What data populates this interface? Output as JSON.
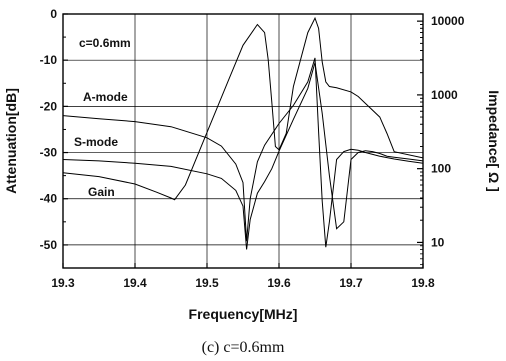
{
  "chart_data": {
    "type": "line",
    "title": "",
    "caption": "(c) c=0.6mm",
    "xlabel": "Frequency[MHz]",
    "ylabel_left": "Attenuation[dB]",
    "ylabel_right": "Impedance[ Ω ]",
    "xlim": [
      19.3,
      19.8
    ],
    "ylim_left": [
      -55,
      0
    ],
    "ylim_right_log": [
      4.5,
      12500
    ],
    "x_ticks": [
      "19.3",
      "19.4",
      "19.5",
      "19.6",
      "19.7",
      "19.8"
    ],
    "y_ticks_left": [
      "0",
      "-10",
      "-20",
      "-30",
      "-40",
      "-50"
    ],
    "y_ticks_right": [
      "10",
      "100",
      "1000",
      "10000"
    ],
    "grid": true,
    "annotations": {
      "param": "c=0.6mm",
      "a_mode": "A-mode",
      "s_mode": "S-mode",
      "gain": "Gain"
    },
    "series": [
      {
        "axis": "left",
        "x": [
          19.3,
          19.35,
          19.4,
          19.45,
          19.5,
          19.52,
          19.54,
          19.55,
          19.555,
          19.56,
          19.57,
          19.58,
          19.6,
          19.62,
          19.64,
          19.65,
          19.655,
          19.66,
          19.665,
          19.67,
          19.68,
          19.69,
          19.7,
          19.71,
          19.72,
          19.74,
          19.75,
          19.76,
          19.78,
          19.8
        ],
        "y": [
          -22,
          -22.7,
          -23.3,
          -24.4,
          -26.8,
          -28.6,
          -32.5,
          -36.5,
          -49.2,
          -40,
          -32,
          -28.4,
          -23.7,
          -19.8,
          -14.7,
          -9.5,
          -25.5,
          -40.5,
          -50.5,
          -45,
          -31.5,
          -29.8,
          -29.3,
          -29.5,
          -30,
          -30.8,
          -31.1,
          -31.4,
          -31.9,
          -32.3
        ]
      },
      {
        "axis": "left",
        "x": [
          19.3,
          19.35,
          19.4,
          19.45,
          19.5,
          19.52,
          19.54,
          19.55,
          19.555,
          19.56,
          19.57,
          19.58,
          19.59,
          19.6,
          19.62,
          19.64,
          19.65,
          19.66,
          19.67,
          19.68,
          19.69,
          19.7,
          19.71,
          19.72,
          19.73,
          19.74,
          19.75,
          19.76,
          19.78,
          19.8
        ],
        "y": [
          -31.5,
          -31.8,
          -32.3,
          -33,
          -34.6,
          -35.6,
          -38.2,
          -41.6,
          -51,
          -44.5,
          -38.8,
          -36.3,
          -33.5,
          -29.7,
          -22.8,
          -16.1,
          -10.5,
          -21.5,
          -35,
          -46.5,
          -45,
          -31.5,
          -30,
          -29.6,
          -29.8,
          -30.2,
          -30.8,
          -31,
          -31.4,
          -31.8
        ]
      },
      {
        "axis": "right",
        "x": [
          19.3,
          19.35,
          19.4,
          19.43,
          19.45,
          19.455,
          19.47,
          19.5,
          19.53,
          19.55,
          19.57,
          19.58,
          19.585,
          19.59,
          19.595,
          19.6,
          19.61,
          19.62,
          19.64,
          19.65,
          19.655,
          19.66,
          19.665,
          19.67,
          19.68,
          19.7,
          19.71,
          19.74,
          19.75,
          19.76,
          19.8
        ],
        "y": [
          88,
          78,
          62,
          48,
          40,
          38,
          60,
          310,
          1600,
          4700,
          9000,
          7000,
          3000,
          800,
          200,
          180,
          300,
          1300,
          7000,
          11000,
          8000,
          2800,
          1500,
          1300,
          1250,
          1100,
          950,
          500,
          300,
          170,
          140
        ]
      }
    ]
  }
}
